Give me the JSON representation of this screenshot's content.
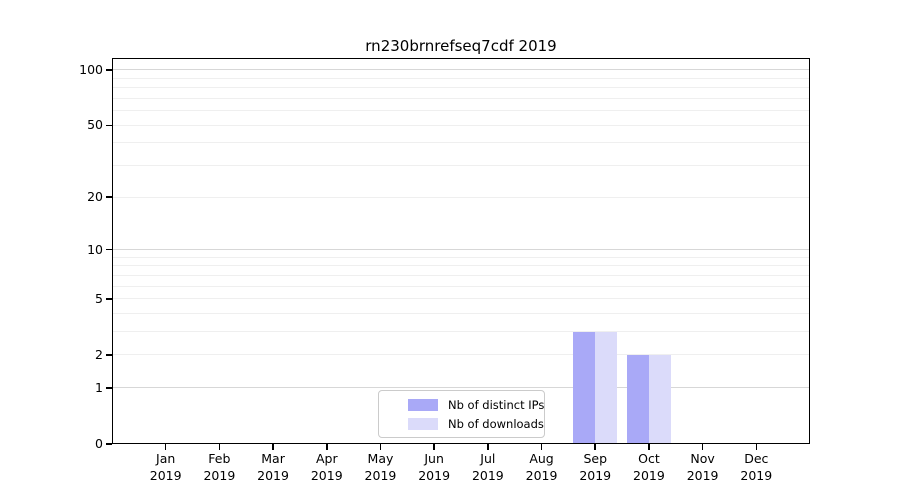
{
  "chart_data": {
    "type": "bar",
    "title": "rn230brnrefseq7cdf 2019",
    "year_label": "2019",
    "categories": [
      "Jan",
      "Feb",
      "Mar",
      "Apr",
      "May",
      "Jun",
      "Jul",
      "Aug",
      "Sep",
      "Oct",
      "Nov",
      "Dec"
    ],
    "series": [
      {
        "key": "distinct-ips",
        "name": "Nb of distinct IPs",
        "color": "#a9a9f7",
        "values": [
          0,
          0,
          0,
          0,
          0,
          0,
          0,
          0,
          3,
          2,
          0,
          0
        ]
      },
      {
        "key": "downloads",
        "name": "Nb of downloads",
        "color": "#dbdbfa",
        "values": [
          0,
          0,
          0,
          0,
          0,
          0,
          0,
          0,
          3,
          2,
          0,
          0
        ]
      }
    ],
    "xlabel": "",
    "ylabel": "",
    "yscale": "log1p",
    "ylim": [
      0,
      116
    ],
    "yticks": [
      0,
      1,
      2,
      5,
      10,
      20,
      50,
      100
    ],
    "major_gridlines": [
      1,
      10,
      100
    ],
    "minor_gridlines": [
      2,
      3,
      4,
      5,
      6,
      7,
      8,
      9,
      20,
      30,
      40,
      50,
      60,
      70,
      80,
      90
    ],
    "grid": true,
    "legend_position": "lower center",
    "colors": {
      "axis": "#000000",
      "grid_major": "#d7d7d7",
      "grid_minor": "#efefef",
      "background": "#ffffff"
    }
  }
}
